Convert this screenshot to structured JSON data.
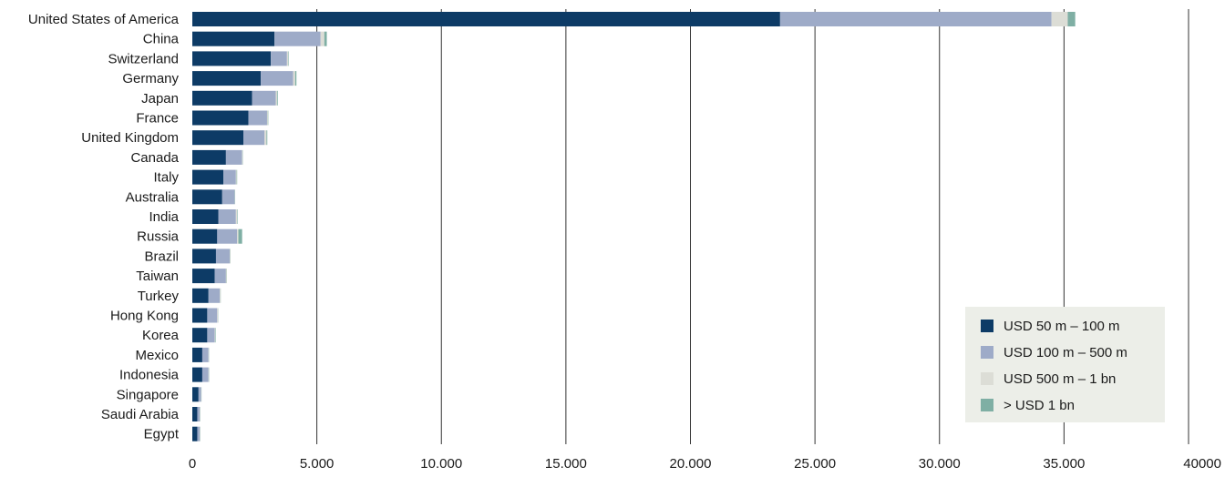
{
  "chart_data": {
    "type": "bar",
    "orientation": "horizontal",
    "stacked": true,
    "categories": [
      "United States of America",
      "China",
      "Switzerland",
      "Germany",
      "Japan",
      "France",
      "United Kingdom",
      "Canada",
      "Italy",
      "Australia",
      "India",
      "Russia",
      "Brazil",
      "Taiwan",
      "Turkey",
      "Hong Kong",
      "Korea",
      "Mexico",
      "Indonesia",
      "Singapore",
      "Saudi Arabia",
      "Egypt"
    ],
    "series": [
      {
        "name": "USD 50 m – 100 m",
        "color": "#0d3b66",
        "values": [
          23600,
          3300,
          3150,
          2750,
          2400,
          2250,
          2050,
          1350,
          1250,
          1200,
          1050,
          1000,
          950,
          900,
          650,
          600,
          600,
          400,
          400,
          250,
          200,
          200
        ]
      },
      {
        "name": "USD 100 m – 500 m",
        "color": "#9eabc8",
        "values": [
          10900,
          1850,
          650,
          1300,
          950,
          750,
          850,
          650,
          500,
          500,
          700,
          800,
          550,
          450,
          450,
          400,
          300,
          250,
          250,
          100,
          100,
          100
        ]
      },
      {
        "name": "USD 500 m – 1 bn",
        "color": "#dcddd6",
        "values": [
          650,
          150,
          50,
          80,
          50,
          30,
          80,
          20,
          30,
          10,
          50,
          50,
          20,
          30,
          30,
          30,
          20,
          10,
          20,
          10,
          10,
          10
        ]
      },
      {
        "name": "> USD 1 bn",
        "color": "#7fafa4",
        "values": [
          300,
          100,
          20,
          50,
          30,
          20,
          30,
          10,
          20,
          10,
          20,
          150,
          10,
          10,
          10,
          10,
          20,
          10,
          10,
          10,
          10,
          10
        ]
      }
    ],
    "xlim": [
      0,
      40000
    ],
    "x_ticks": [
      "0",
      "5.000",
      "10.000",
      "15.000",
      "20.000",
      "25.000",
      "30.000",
      "35.000",
      "40000"
    ],
    "grid": true,
    "legend_position": "bottom-right",
    "legend_background": "#eceee8"
  }
}
